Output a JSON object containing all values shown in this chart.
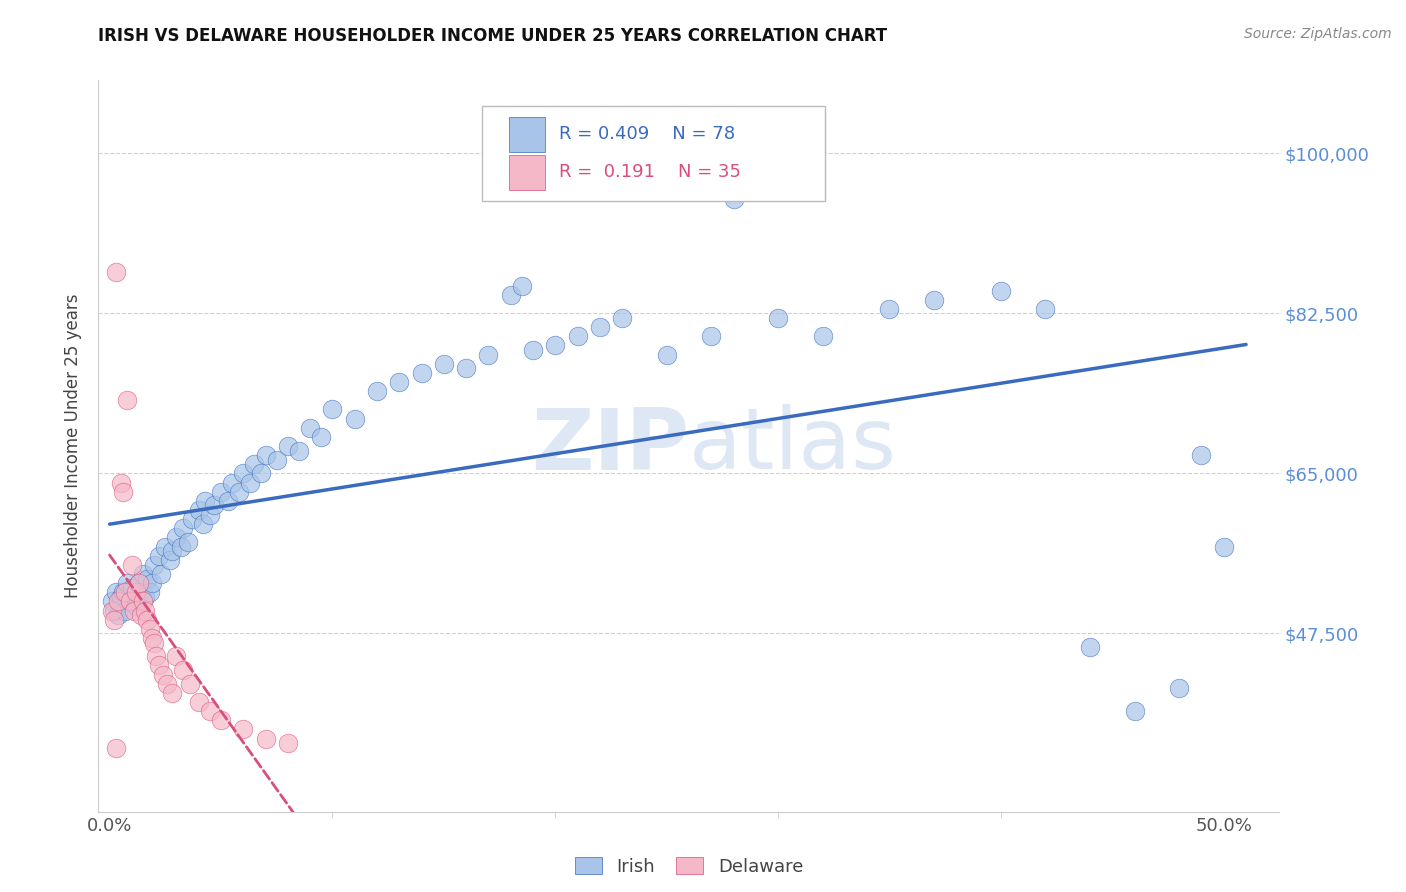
{
  "title": "IRISH VS DELAWARE HOUSEHOLDER INCOME UNDER 25 YEARS CORRELATION CHART",
  "source": "Source: ZipAtlas.com",
  "ylabel": "Householder Income Under 25 years",
  "y_tick_labels": [
    "$47,500",
    "$65,000",
    "$82,500",
    "$100,000"
  ],
  "y_tick_values": [
    47500,
    65000,
    82500,
    100000
  ],
  "ylim": [
    28000,
    108000
  ],
  "xlim": [
    -0.005,
    0.525
  ],
  "irish_color": "#a8c4e8",
  "delaware_color": "#f4b8c8",
  "irish_line_color": "#3a6bbf",
  "delaware_line_color": "#d94f7a",
  "watermark_color": "#c8d8ee",
  "background_color": "#ffffff",
  "grid_color": "#cccccc",
  "right_label_color": "#5b8dd9",
  "title_color": "#111111",
  "source_color": "#888888",
  "irish_x": [
    0.001,
    0.002,
    0.003,
    0.004,
    0.005,
    0.006,
    0.007,
    0.008,
    0.009,
    0.01,
    0.011,
    0.012,
    0.013,
    0.014,
    0.015,
    0.016,
    0.017,
    0.018,
    0.019,
    0.02,
    0.022,
    0.023,
    0.025,
    0.027,
    0.028,
    0.03,
    0.032,
    0.033,
    0.035,
    0.037,
    0.04,
    0.042,
    0.043,
    0.045,
    0.047,
    0.05,
    0.053,
    0.055,
    0.058,
    0.06,
    0.063,
    0.065,
    0.068,
    0.07,
    0.075,
    0.08,
    0.085,
    0.09,
    0.095,
    0.1,
    0.11,
    0.12,
    0.13,
    0.14,
    0.15,
    0.16,
    0.17,
    0.18,
    0.185,
    0.19,
    0.2,
    0.21,
    0.22,
    0.23,
    0.25,
    0.27,
    0.28,
    0.3,
    0.32,
    0.35,
    0.37,
    0.4,
    0.42,
    0.44,
    0.46,
    0.48,
    0.49,
    0.5
  ],
  "irish_y": [
    51000,
    50000,
    52000,
    49500,
    51500,
    52000,
    50000,
    53000,
    51000,
    52500,
    51000,
    50500,
    53000,
    52000,
    54000,
    51500,
    53500,
    52000,
    53000,
    55000,
    56000,
    54000,
    57000,
    55500,
    56500,
    58000,
    57000,
    59000,
    57500,
    60000,
    61000,
    59500,
    62000,
    60500,
    61500,
    63000,
    62000,
    64000,
    63000,
    65000,
    64000,
    66000,
    65000,
    67000,
    66500,
    68000,
    67500,
    70000,
    69000,
    72000,
    71000,
    74000,
    75000,
    76000,
    77000,
    76500,
    78000,
    84500,
    85500,
    78500,
    79000,
    80000,
    81000,
    82000,
    78000,
    80000,
    95000,
    82000,
    80000,
    83000,
    84000,
    85000,
    83000,
    46000,
    39000,
    41500,
    67000,
    57000
  ],
  "delaware_x": [
    0.001,
    0.002,
    0.003,
    0.004,
    0.005,
    0.006,
    0.007,
    0.008,
    0.009,
    0.01,
    0.011,
    0.012,
    0.013,
    0.014,
    0.015,
    0.016,
    0.017,
    0.018,
    0.019,
    0.02,
    0.021,
    0.022,
    0.024,
    0.026,
    0.028,
    0.03,
    0.033,
    0.036,
    0.04,
    0.045,
    0.05,
    0.06,
    0.07,
    0.08,
    0.003
  ],
  "delaware_y": [
    50000,
    49000,
    87000,
    51000,
    64000,
    63000,
    52000,
    73000,
    51000,
    55000,
    50000,
    52000,
    53000,
    49500,
    51000,
    50000,
    49000,
    48000,
    47000,
    46500,
    45000,
    44000,
    43000,
    42000,
    41000,
    45000,
    43500,
    42000,
    40000,
    39000,
    38000,
    37000,
    36000,
    35500,
    35000
  ]
}
